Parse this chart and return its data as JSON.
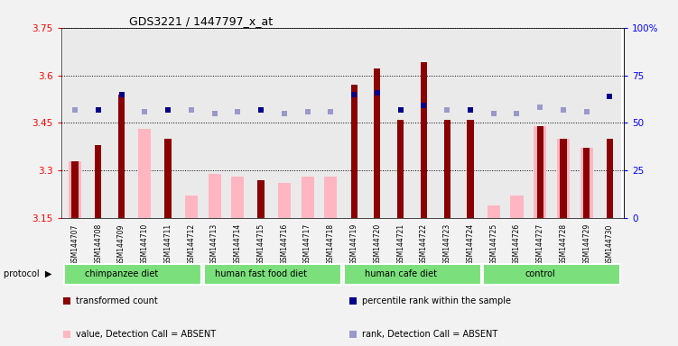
{
  "title": "GDS3221 / 1447797_x_at",
  "samples": [
    "GSM144707",
    "GSM144708",
    "GSM144709",
    "GSM144710",
    "GSM144711",
    "GSM144712",
    "GSM144713",
    "GSM144714",
    "GSM144715",
    "GSM144716",
    "GSM144717",
    "GSM144718",
    "GSM144719",
    "GSM144720",
    "GSM144721",
    "GSM144722",
    "GSM144723",
    "GSM144724",
    "GSM144725",
    "GSM144726",
    "GSM144727",
    "GSM144728",
    "GSM144729",
    "GSM144730"
  ],
  "transformed_count": [
    3.33,
    3.38,
    3.54,
    null,
    3.4,
    null,
    null,
    null,
    3.27,
    null,
    null,
    null,
    3.57,
    3.62,
    3.46,
    3.64,
    3.46,
    3.46,
    null,
    null,
    3.44,
    3.4,
    3.37,
    3.4
  ],
  "value_absent": [
    3.33,
    null,
    null,
    3.43,
    null,
    3.22,
    3.29,
    3.28,
    null,
    3.26,
    3.28,
    3.28,
    null,
    null,
    null,
    null,
    null,
    null,
    3.19,
    3.22,
    3.44,
    3.4,
    3.37,
    null
  ],
  "percentile_rank": [
    null,
    57,
    65,
    null,
    57,
    null,
    null,
    null,
    57,
    null,
    null,
    null,
    65,
    66,
    57,
    59,
    null,
    57,
    null,
    null,
    null,
    null,
    null,
    64
  ],
  "rank_absent": [
    57,
    null,
    null,
    56,
    null,
    57,
    55,
    56,
    null,
    55,
    56,
    56,
    null,
    null,
    null,
    null,
    57,
    null,
    55,
    55,
    58,
    57,
    56,
    null
  ],
  "groups": [
    {
      "label": "chimpanzee diet",
      "start": 0,
      "end": 5
    },
    {
      "label": "human fast food diet",
      "start": 6,
      "end": 11
    },
    {
      "label": "human cafe diet",
      "start": 12,
      "end": 17
    },
    {
      "label": "control",
      "start": 18,
      "end": 23
    }
  ],
  "ylim_left": [
    3.15,
    3.75
  ],
  "ylim_right": [
    0,
    100
  ],
  "yticks_left": [
    3.15,
    3.3,
    3.45,
    3.6,
    3.75
  ],
  "yticks_right": [
    0,
    25,
    50,
    75,
    100
  ],
  "bar_color_dark": "#8B0000",
  "bar_color_light": "#FFB6C1",
  "rank_color_dark": "#00008B",
  "rank_color_light": "#9999CC",
  "bg_color": "#DCDCDC",
  "group_color": "#7BE07B"
}
